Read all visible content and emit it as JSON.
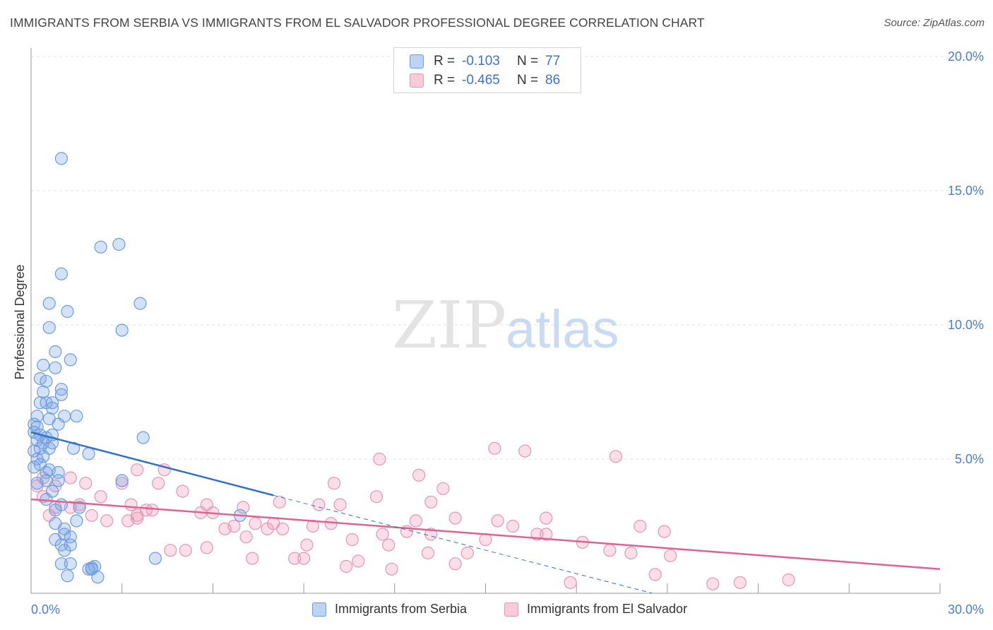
{
  "chart_data": {
    "type": "scatter",
    "title": "IMMIGRANTS FROM SERBIA VS IMMIGRANTS FROM EL SALVADOR PROFESSIONAL DEGREE CORRELATION CHART",
    "source": "Source: ZipAtlas.com",
    "ylabel": "Professional Degree",
    "xlabel": "",
    "xlim": [
      0,
      30
    ],
    "ylim": [
      0,
      20
    ],
    "x_tick_labels": [
      "0.0%",
      "30.0%"
    ],
    "y_ticks": [
      5,
      10,
      15,
      20
    ],
    "y_tick_labels": [
      "5.0%",
      "10.0%",
      "15.0%",
      "20.0%"
    ],
    "watermark": {
      "part1": "ZIP",
      "part2": "atlas"
    },
    "colors": {
      "serbia_fill": "rgba(120,165,230,0.32)",
      "serbia_stroke": "#6b9ce0",
      "serbia_line": "#2f72c8",
      "salvador_fill": "rgba(240,150,180,0.30)",
      "salvador_stroke": "#e894b3",
      "salvador_line": "#e0628f",
      "grid": "#e2e2e2",
      "tick_text": "#4a7dd0"
    },
    "legend": [
      {
        "r_label": "R =",
        "r_value": "-0.103",
        "n_label": "N =",
        "n_value": "77"
      },
      {
        "r_label": "R =",
        "r_value": "-0.465",
        "n_label": "N =",
        "n_value": "86"
      }
    ],
    "series": [
      {
        "name": "Immigrants from Serbia",
        "r": -0.103,
        "n": 77,
        "trend_solid": {
          "x": [
            0,
            8
          ],
          "y": [
            6.0,
            3.65
          ]
        },
        "trend_dashed": {
          "x": [
            8,
            20.5
          ],
          "y": [
            3.65,
            0.0
          ]
        },
        "points": [
          [
            1.0,
            16.2
          ],
          [
            2.3,
            12.9
          ],
          [
            2.9,
            13.0
          ],
          [
            1.0,
            11.9
          ],
          [
            0.6,
            10.8
          ],
          [
            1.2,
            10.5
          ],
          [
            3.6,
            10.8
          ],
          [
            0.6,
            9.9
          ],
          [
            3.0,
            9.8
          ],
          [
            0.8,
            9.0
          ],
          [
            1.3,
            8.7
          ],
          [
            0.4,
            8.5
          ],
          [
            0.8,
            8.4
          ],
          [
            0.3,
            8.0
          ],
          [
            0.5,
            7.9
          ],
          [
            0.4,
            7.5
          ],
          [
            1.0,
            7.6
          ],
          [
            1.0,
            7.4
          ],
          [
            0.3,
            7.1
          ],
          [
            0.5,
            7.1
          ],
          [
            0.7,
            7.1
          ],
          [
            0.7,
            6.9
          ],
          [
            1.1,
            6.6
          ],
          [
            1.5,
            6.6
          ],
          [
            0.2,
            6.6
          ],
          [
            0.6,
            6.5
          ],
          [
            0.9,
            6.3
          ],
          [
            0.1,
            6.3
          ],
          [
            0.2,
            6.2
          ],
          [
            0.1,
            6.0
          ],
          [
            0.3,
            5.9
          ],
          [
            0.5,
            5.8
          ],
          [
            0.7,
            5.9
          ],
          [
            3.7,
            5.8
          ],
          [
            0.2,
            5.7
          ],
          [
            0.4,
            5.6
          ],
          [
            0.7,
            5.6
          ],
          [
            0.3,
            5.4
          ],
          [
            0.6,
            5.4
          ],
          [
            1.4,
            5.4
          ],
          [
            0.1,
            5.3
          ],
          [
            1.9,
            5.2
          ],
          [
            0.4,
            5.1
          ],
          [
            0.2,
            5.0
          ],
          [
            0.3,
            4.8
          ],
          [
            0.6,
            4.6
          ],
          [
            0.1,
            4.7
          ],
          [
            0.9,
            4.5
          ],
          [
            0.5,
            4.5
          ],
          [
            3.0,
            4.2
          ],
          [
            0.5,
            4.2
          ],
          [
            0.9,
            4.2
          ],
          [
            0.2,
            4.1
          ],
          [
            0.7,
            3.8
          ],
          [
            0.5,
            3.5
          ],
          [
            1.0,
            3.3
          ],
          [
            1.6,
            3.2
          ],
          [
            0.8,
            3.1
          ],
          [
            6.9,
            2.9
          ],
          [
            1.5,
            2.7
          ],
          [
            0.8,
            2.6
          ],
          [
            1.1,
            2.4
          ],
          [
            1.1,
            2.2
          ],
          [
            1.3,
            2.1
          ],
          [
            0.8,
            2.0
          ],
          [
            1.0,
            1.8
          ],
          [
            1.3,
            1.8
          ],
          [
            1.1,
            1.6
          ],
          [
            4.1,
            1.3
          ],
          [
            1.0,
            1.1
          ],
          [
            1.3,
            1.1
          ],
          [
            2.0,
            0.95
          ],
          [
            2.1,
            1.0
          ],
          [
            2.0,
            0.9
          ],
          [
            1.2,
            0.65
          ],
          [
            2.2,
            0.6
          ],
          [
            1.9,
            0.9
          ]
        ]
      },
      {
        "name": "Immigrants from El Salvador",
        "r": -0.465,
        "n": 86,
        "trend": {
          "x": [
            0,
            30
          ],
          "y": [
            3.5,
            0.9
          ]
        },
        "points": [
          [
            15.3,
            5.4
          ],
          [
            16.3,
            5.3
          ],
          [
            19.3,
            5.1
          ],
          [
            11.5,
            5.0
          ],
          [
            4.4,
            4.6
          ],
          [
            3.5,
            4.6
          ],
          [
            12.8,
            4.4
          ],
          [
            0.4,
            4.3
          ],
          [
            1.3,
            4.3
          ],
          [
            10.0,
            4.1
          ],
          [
            1.8,
            4.1
          ],
          [
            4.2,
            4.1
          ],
          [
            3.0,
            4.1
          ],
          [
            0.8,
            4.0
          ],
          [
            13.6,
            3.9
          ],
          [
            5.0,
            3.8
          ],
          [
            11.4,
            3.6
          ],
          [
            0.4,
            3.6
          ],
          [
            2.3,
            3.6
          ],
          [
            8.2,
            3.4
          ],
          [
            13.2,
            3.4
          ],
          [
            9.5,
            3.3
          ],
          [
            10.2,
            3.3
          ],
          [
            1.6,
            3.3
          ],
          [
            3.3,
            3.3
          ],
          [
            5.8,
            3.3
          ],
          [
            7.0,
            3.2
          ],
          [
            1.3,
            3.2
          ],
          [
            0.8,
            3.2
          ],
          [
            3.8,
            3.1
          ],
          [
            4.0,
            3.1
          ],
          [
            5.6,
            3.0
          ],
          [
            6.0,
            3.0
          ],
          [
            3.5,
            2.9
          ],
          [
            2.0,
            2.9
          ],
          [
            0.6,
            2.9
          ],
          [
            3.5,
            2.8
          ],
          [
            14.0,
            2.8
          ],
          [
            17.0,
            2.8
          ],
          [
            2.5,
            2.7
          ],
          [
            3.2,
            2.7
          ],
          [
            12.7,
            2.7
          ],
          [
            15.4,
            2.7
          ],
          [
            7.4,
            2.6
          ],
          [
            8.0,
            2.6
          ],
          [
            9.9,
            2.6
          ],
          [
            9.3,
            2.5
          ],
          [
            6.7,
            2.5
          ],
          [
            15.9,
            2.5
          ],
          [
            20.1,
            2.5
          ],
          [
            7.8,
            2.4
          ],
          [
            6.4,
            2.4
          ],
          [
            8.3,
            2.4
          ],
          [
            12.4,
            2.3
          ],
          [
            20.9,
            2.3
          ],
          [
            11.6,
            2.2
          ],
          [
            13.2,
            2.2
          ],
          [
            16.7,
            2.2
          ],
          [
            17.0,
            2.2
          ],
          [
            7.1,
            2.1
          ],
          [
            10.6,
            2.0
          ],
          [
            15.0,
            2.0
          ],
          [
            18.2,
            1.9
          ],
          [
            9.1,
            1.8
          ],
          [
            11.8,
            1.8
          ],
          [
            5.8,
            1.7
          ],
          [
            4.6,
            1.6
          ],
          [
            5.1,
            1.6
          ],
          [
            14.4,
            1.5
          ],
          [
            13.1,
            1.5
          ],
          [
            19.1,
            1.6
          ],
          [
            19.8,
            1.5
          ],
          [
            21.1,
            1.4
          ],
          [
            7.3,
            1.3
          ],
          [
            8.7,
            1.3
          ],
          [
            9.0,
            1.3
          ],
          [
            10.8,
            1.2
          ],
          [
            14.0,
            1.1
          ],
          [
            10.4,
            1.0
          ],
          [
            11.9,
            0.9
          ],
          [
            23.4,
            0.4
          ],
          [
            25.0,
            0.5
          ],
          [
            17.8,
            0.4
          ],
          [
            20.6,
            0.7
          ],
          [
            22.5,
            0.35
          ],
          [
            0.2,
            4.0
          ]
        ]
      }
    ]
  }
}
